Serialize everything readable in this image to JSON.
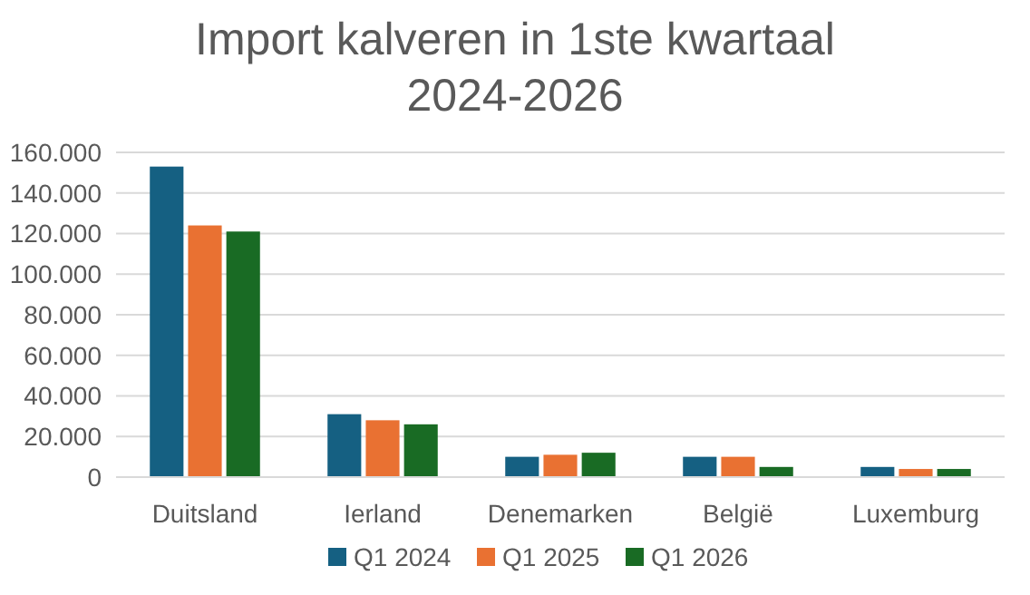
{
  "chart_data": {
    "type": "bar",
    "title": "Import kalveren in 1ste kwartaal\n2024-2026",
    "categories": [
      "Duitsland",
      "Ierland",
      "Denemarken",
      "België",
      "Luxemburg"
    ],
    "series": [
      {
        "name": "Q1 2024",
        "color": "#156082",
        "values": [
          153000,
          31000,
          10000,
          10000,
          5000
        ]
      },
      {
        "name": "Q1 2025",
        "color": "#e97132",
        "values": [
          124000,
          28000,
          11000,
          10000,
          4000
        ]
      },
      {
        "name": "Q1 2026",
        "color": "#196b24",
        "values": [
          121000,
          26000,
          12000,
          5000,
          4000
        ]
      }
    ],
    "ylim": [
      0,
      160000
    ],
    "yticks": [
      {
        "value": 0,
        "label": "0"
      },
      {
        "value": 20000,
        "label": "20.000"
      },
      {
        "value": 40000,
        "label": "40.000"
      },
      {
        "value": 60000,
        "label": "60.000"
      },
      {
        "value": 80000,
        "label": "80.000"
      },
      {
        "value": 100000,
        "label": "100.000"
      },
      {
        "value": 120000,
        "label": "120.000"
      },
      {
        "value": 140000,
        "label": "140.000"
      },
      {
        "value": 160000,
        "label": "160.000"
      }
    ],
    "grid": "y",
    "legend": "bottom"
  }
}
